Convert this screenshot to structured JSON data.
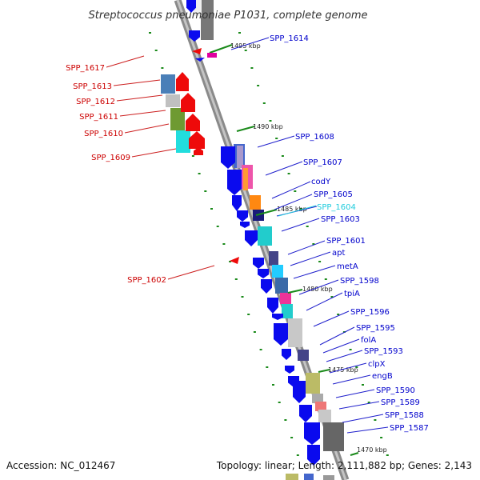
{
  "title": "Streptococcus pneumoniae P1031, complete genome",
  "footer": {
    "accession": "Accession: NC_012467",
    "topology": "Topology: linear; Length: 2,111,882 bp; Genes: 2,143"
  },
  "kbp_markers": [
    "1495 kbp",
    "1490 kbp",
    "1485 kbp",
    "1480 kbp",
    "1475 kbp",
    "1470 kbp"
  ],
  "colors": {
    "forward_gene": "#0a0aee",
    "reverse_gene": "#ee0a0a",
    "highlight_label": "#22ccdd",
    "label_forward": "#0000cc",
    "label_reverse": "#cc0000",
    "dots": "#1a8a1a",
    "backbone": "#909090"
  },
  "forward_labels": [
    {
      "name": "SPP_1614",
      "highlight": false
    },
    {
      "name": "SPP_1608",
      "highlight": false
    },
    {
      "name": "SPP_1607",
      "highlight": false
    },
    {
      "name": "codY",
      "highlight": false
    },
    {
      "name": "SPP_1605",
      "highlight": false
    },
    {
      "name": "SPP_1604",
      "highlight": true
    },
    {
      "name": "SPP_1603",
      "highlight": false
    },
    {
      "name": "SPP_1601",
      "highlight": false
    },
    {
      "name": "apt",
      "highlight": false
    },
    {
      "name": "metA",
      "highlight": false
    },
    {
      "name": "SPP_1598",
      "highlight": false
    },
    {
      "name": "tpiA",
      "highlight": false
    },
    {
      "name": "SPP_1596",
      "highlight": false
    },
    {
      "name": "SPP_1595",
      "highlight": false
    },
    {
      "name": "folA",
      "highlight": false
    },
    {
      "name": "SPP_1593",
      "highlight": false
    },
    {
      "name": "clpX",
      "highlight": false
    },
    {
      "name": "engB",
      "highlight": false
    },
    {
      "name": "SPP_1590",
      "highlight": false
    },
    {
      "name": "SPP_1589",
      "highlight": false
    },
    {
      "name": "SPP_1588",
      "highlight": false
    },
    {
      "name": "SPP_1587",
      "highlight": false
    }
  ],
  "reverse_labels": [
    {
      "name": "SPP_1617"
    },
    {
      "name": "SPP_1613"
    },
    {
      "name": "SPP_1612"
    },
    {
      "name": "SPP_1611"
    },
    {
      "name": "SPP_1610"
    },
    {
      "name": "SPP_1609"
    },
    {
      "name": "SPP_1602"
    }
  ]
}
